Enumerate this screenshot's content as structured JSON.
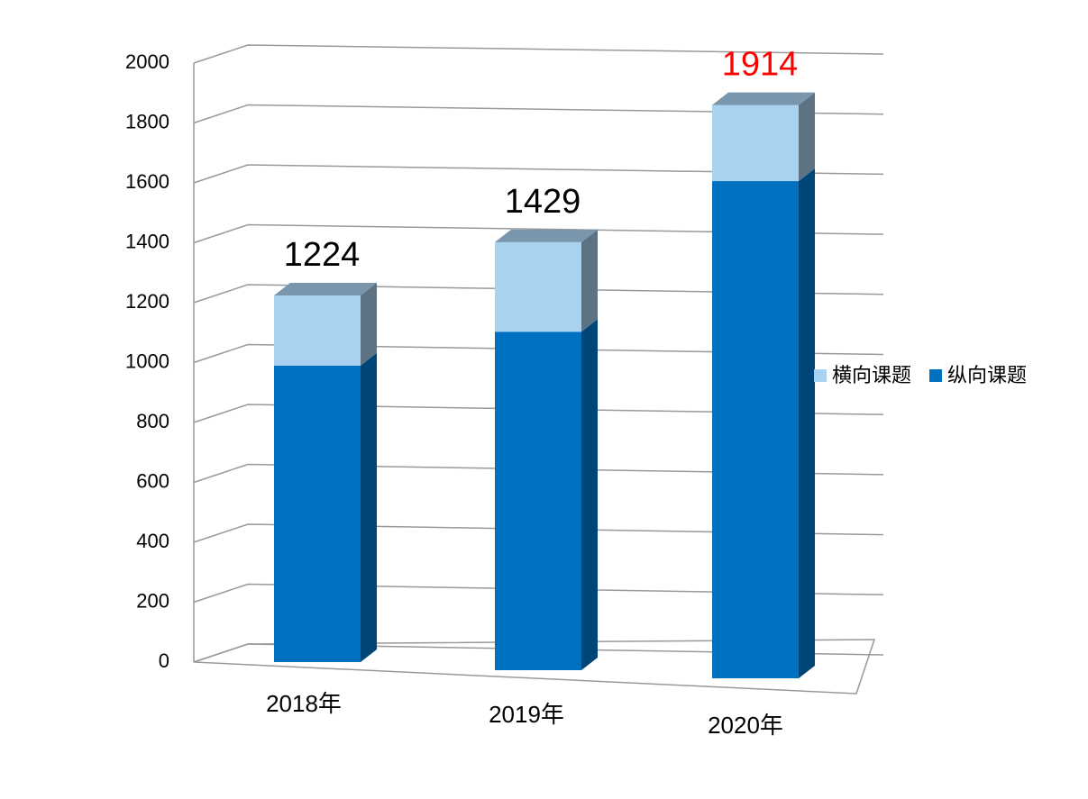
{
  "chart_data": {
    "type": "bar3d_stacked",
    "categories": [
      "2018年",
      "2019年",
      "2020年"
    ],
    "series": [
      {
        "name": "纵向课题",
        "color": "#0070c0",
        "values": [
          990,
          1130,
          1660
        ]
      },
      {
        "name": "横向课题",
        "color": "#a9d1f0",
        "values": [
          234,
          299,
          254
        ]
      }
    ],
    "totals": [
      1224,
      1429,
      1914
    ],
    "total_label_colors": [
      "#000000",
      "#000000",
      "#ff0000"
    ],
    "ylim": [
      0,
      2000
    ],
    "yticks": [
      0,
      200,
      400,
      600,
      800,
      1000,
      1200,
      1400,
      1600,
      1800,
      2000
    ],
    "grid": true,
    "legend": "right"
  }
}
